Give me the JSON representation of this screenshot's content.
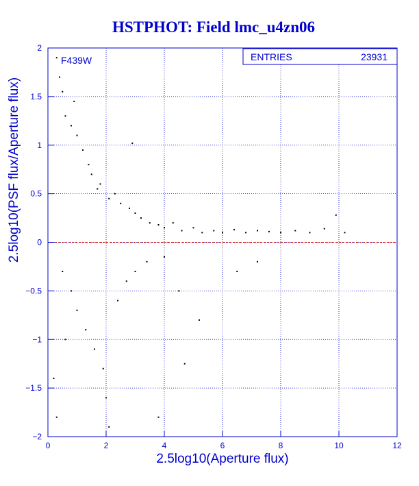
{
  "chart_data": {
    "type": "scatter",
    "title": "HSTPHOT: Field lmc_u4zn06",
    "xlabel": "2.5log10(Aperture flux)",
    "ylabel": "2.5log10(PSF flux/Aperture flux)",
    "xlim": [
      0,
      12
    ],
    "ylim": [
      -2,
      2
    ],
    "x_ticks": [
      "0",
      "2",
      "4",
      "6",
      "8",
      "10",
      "12"
    ],
    "y_ticks": [
      "-2",
      "-1.5",
      "-1",
      "-0.5",
      "0",
      "0.5",
      "1",
      "1.5",
      "2"
    ],
    "grid": true,
    "filter_label": "F439W",
    "reference_line": {
      "y": 0,
      "color": "#cc0000"
    },
    "stats_box": {
      "label": "ENTRIES",
      "value": "23931"
    },
    "series": [
      {
        "points": [
          [
            0.3,
            1.9
          ],
          [
            0.4,
            1.7
          ],
          [
            0.5,
            1.55
          ],
          [
            0.6,
            1.3
          ],
          [
            0.8,
            1.2
          ],
          [
            0.9,
            1.45
          ],
          [
            1.0,
            1.1
          ],
          [
            1.2,
            0.95
          ],
          [
            1.4,
            0.8
          ],
          [
            1.5,
            0.7
          ],
          [
            1.7,
            0.55
          ],
          [
            1.8,
            0.6
          ],
          [
            2.1,
            0.45
          ],
          [
            2.3,
            0.5
          ],
          [
            2.5,
            0.4
          ],
          [
            2.8,
            0.35
          ],
          [
            3.0,
            0.3
          ],
          [
            2.9,
            1.02
          ],
          [
            3.2,
            0.25
          ],
          [
            3.5,
            0.2
          ],
          [
            3.8,
            0.18
          ],
          [
            4.0,
            0.15
          ],
          [
            4.3,
            0.2
          ],
          [
            4.6,
            0.12
          ],
          [
            5.0,
            0.15
          ],
          [
            5.3,
            0.1
          ],
          [
            5.7,
            0.12
          ],
          [
            6.0,
            0.1
          ],
          [
            6.4,
            0.13
          ],
          [
            6.8,
            0.1
          ],
          [
            7.2,
            0.12
          ],
          [
            7.6,
            0.11
          ],
          [
            8.0,
            0.1
          ],
          [
            8.5,
            0.12
          ],
          [
            9.0,
            0.1
          ],
          [
            9.5,
            0.14
          ],
          [
            9.9,
            0.28
          ],
          [
            10.2,
            0.1
          ],
          [
            0.5,
            -0.3
          ],
          [
            0.8,
            -0.5
          ],
          [
            1.0,
            -0.7
          ],
          [
            1.3,
            -0.9
          ],
          [
            1.6,
            -1.1
          ],
          [
            1.9,
            -1.3
          ],
          [
            2.0,
            -1.6
          ],
          [
            2.1,
            -1.9
          ],
          [
            2.4,
            -0.6
          ],
          [
            2.7,
            -0.4
          ],
          [
            3.0,
            -0.3
          ],
          [
            3.4,
            -0.2
          ],
          [
            4.0,
            -0.15
          ],
          [
            4.5,
            -0.5
          ],
          [
            4.7,
            -1.25
          ],
          [
            5.2,
            -0.8
          ],
          [
            3.8,
            -1.8
          ],
          [
            6.5,
            -0.3
          ],
          [
            7.2,
            -0.2
          ],
          [
            0.2,
            -1.4
          ],
          [
            0.3,
            -1.8
          ],
          [
            0.6,
            -1.0
          ]
        ]
      }
    ]
  }
}
